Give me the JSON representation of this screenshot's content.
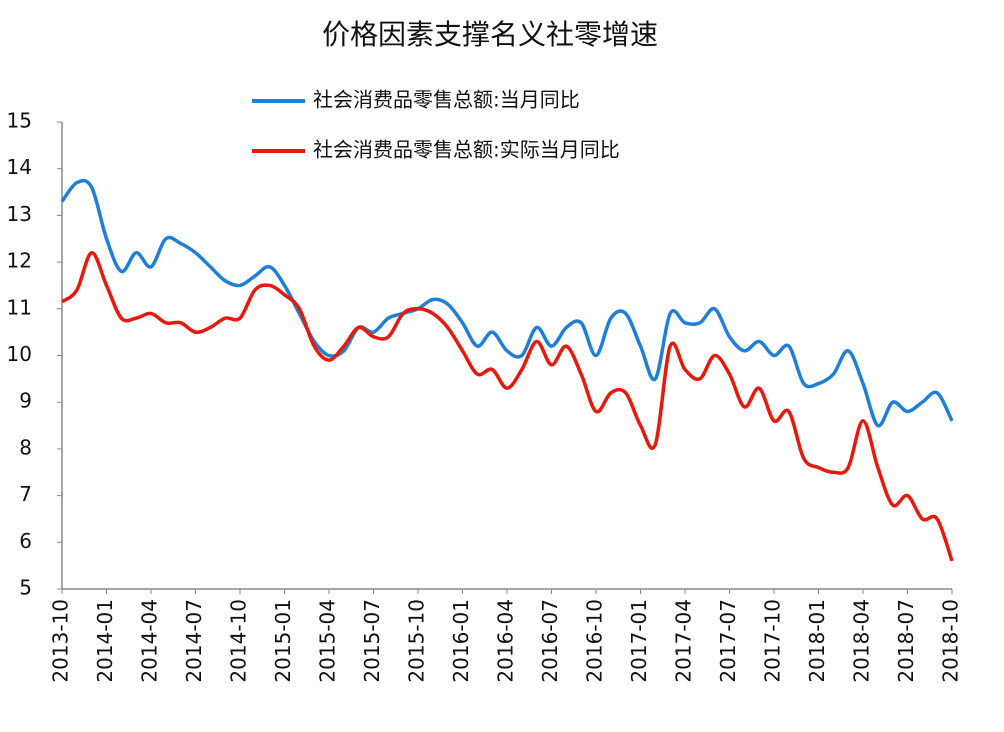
{
  "chart_data": {
    "type": "line",
    "title": "价格因素支撑名义社零增速",
    "categories": [
      "2013-10",
      null,
      null,
      "2014-01",
      null,
      null,
      "2014-04",
      null,
      null,
      "2014-07",
      null,
      null,
      "2014-10",
      null,
      null,
      "2015-01",
      null,
      null,
      "2015-04",
      null,
      null,
      "2015-07",
      null,
      null,
      "2015-10",
      null,
      null,
      "2016-01",
      null,
      null,
      "2016-04",
      null,
      null,
      "2016-07",
      null,
      null,
      "2016-10",
      null,
      null,
      "2017-01",
      null,
      null,
      "2017-04",
      null,
      null,
      "2017-07",
      null,
      null,
      "2017-10",
      null,
      null,
      "2018-01",
      null,
      null,
      "2018-04",
      null,
      null,
      "2018-07",
      null,
      null,
      "2018-10"
    ],
    "series": [
      {
        "name": "社会消费品零售总额:当月同比",
        "color": "#1f7fd6",
        "values": [
          13.3,
          13.7,
          13.6,
          12.5,
          11.8,
          12.2,
          11.9,
          12.5,
          12.4,
          12.2,
          11.9,
          11.6,
          11.5,
          11.7,
          11.9,
          11.5,
          10.9,
          10.3,
          10.0,
          10.1,
          10.6,
          10.5,
          10.8,
          10.9,
          11.0,
          11.2,
          11.1,
          10.7,
          10.2,
          10.5,
          10.1,
          10.0,
          10.6,
          10.2,
          10.6,
          10.7,
          10.0,
          10.8,
          10.9,
          10.2,
          9.5,
          10.9,
          10.7,
          10.7,
          11.0,
          10.4,
          10.1,
          10.3,
          10.0,
          10.2,
          9.4,
          9.4,
          9.6,
          10.1,
          9.4,
          8.5,
          9.0,
          8.8,
          9.0,
          9.2,
          8.6
        ]
      },
      {
        "name": "社会消费品零售总额:实际当月同比",
        "color": "#e8180c",
        "values": [
          11.15,
          11.4,
          12.2,
          11.5,
          10.8,
          10.8,
          10.9,
          10.7,
          10.7,
          10.5,
          10.6,
          10.8,
          10.8,
          11.4,
          11.5,
          11.3,
          11.0,
          10.2,
          9.9,
          10.2,
          10.6,
          10.4,
          10.4,
          10.9,
          11.0,
          10.9,
          10.6,
          10.1,
          9.6,
          9.7,
          9.3,
          9.7,
          10.3,
          9.8,
          10.2,
          9.6,
          8.8,
          9.2,
          9.2,
          8.5,
          8.1,
          10.2,
          9.7,
          9.5,
          10.0,
          9.6,
          8.9,
          9.3,
          8.6,
          8.8,
          7.8,
          7.6,
          7.5,
          7.6,
          8.6,
          7.6,
          6.8,
          7.0,
          6.5,
          6.5,
          5.6
        ]
      }
    ],
    "ylim": [
      5,
      15
    ],
    "yticks": [
      5,
      6,
      7,
      8,
      9,
      10,
      11,
      12,
      13,
      14,
      15
    ],
    "grid": false
  }
}
